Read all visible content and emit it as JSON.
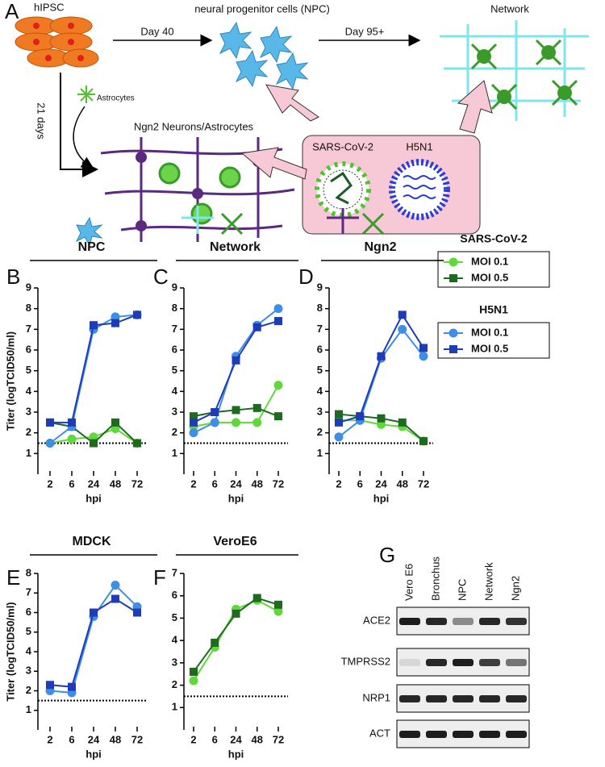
{
  "panel_a": {
    "label": "A",
    "hipsc": "hIPSC",
    "npc": "neural progenitor cells (NPC)",
    "network": "Network",
    "day40": "Day 40",
    "day95": "Day 95+",
    "days21": "21 days",
    "astrocytes": "Astrocytes",
    "ngn2": "Ngn2 Neurons/Astrocytes",
    "virus1": "SARS-CoV-2",
    "virus2": "H5N1"
  },
  "chart_data": [
    {
      "type": "line",
      "panel": "B",
      "title": "NPC",
      "ylabel": "Titer (logTCID50/ml)",
      "xlabel": "hpi",
      "categories": [
        "2",
        "6",
        "24",
        "48",
        "72"
      ],
      "ylim": [
        0,
        9
      ],
      "yticks": [
        1,
        2,
        3,
        4,
        5,
        6,
        7,
        8,
        9
      ],
      "threshold": 1.5,
      "series": [
        {
          "name": "MOI 0.1",
          "group": "SARS-CoV-2",
          "color": "#5fd83a",
          "marker": "circle",
          "values": [
            1.5,
            1.7,
            1.8,
            2.2,
            1.5
          ]
        },
        {
          "name": "MOI 0.5",
          "group": "SARS-CoV-2",
          "color": "#1e6a1e",
          "marker": "square",
          "values": [
            2.5,
            2.3,
            1.5,
            2.5,
            1.5
          ]
        },
        {
          "name": "MOI 0.1",
          "group": "H5N1",
          "color": "#3f8ee6",
          "marker": "circle",
          "values": [
            1.5,
            2.3,
            7.0,
            7.6,
            7.7
          ]
        },
        {
          "name": "MOI 0.5",
          "group": "H5N1",
          "color": "#1f3cb8",
          "marker": "square",
          "values": [
            2.5,
            2.5,
            7.2,
            7.3,
            7.7
          ]
        }
      ]
    },
    {
      "type": "line",
      "panel": "C",
      "title": "Network",
      "xlabel": "hpi",
      "categories": [
        "2",
        "6",
        "24",
        "48",
        "72"
      ],
      "ylim": [
        0,
        9
      ],
      "yticks": [
        1,
        2,
        3,
        4,
        5,
        6,
        7,
        8,
        9
      ],
      "threshold": 1.5,
      "series": [
        {
          "name": "MOI 0.1",
          "group": "SARS-CoV-2",
          "color": "#5fd83a",
          "marker": "circle",
          "values": [
            2.3,
            2.5,
            2.5,
            2.5,
            4.3
          ]
        },
        {
          "name": "MOI 0.5",
          "group": "SARS-CoV-2",
          "color": "#1e6a1e",
          "marker": "square",
          "values": [
            2.8,
            3.0,
            3.1,
            3.2,
            2.8
          ]
        },
        {
          "name": "MOI 0.1",
          "group": "H5N1",
          "color": "#3f8ee6",
          "marker": "circle",
          "values": [
            2.0,
            2.5,
            5.7,
            7.2,
            8.0
          ]
        },
        {
          "name": "MOI 0.5",
          "group": "H5N1",
          "color": "#1f3cb8",
          "marker": "square",
          "values": [
            2.5,
            3.0,
            5.5,
            7.1,
            7.4
          ]
        }
      ]
    },
    {
      "type": "line",
      "panel": "D",
      "title": "Ngn2",
      "xlabel": "hpi",
      "categories": [
        "2",
        "6",
        "24",
        "48",
        "72"
      ],
      "ylim": [
        0,
        9
      ],
      "yticks": [
        1,
        2,
        3,
        4,
        5,
        6,
        7,
        8,
        9
      ],
      "threshold": 1.5,
      "legend": "right",
      "series": [
        {
          "name": "MOI 0.1",
          "group": "SARS-CoV-2",
          "color": "#5fd83a",
          "marker": "circle",
          "values": [
            2.6,
            2.6,
            2.4,
            2.3,
            1.6
          ]
        },
        {
          "name": "MOI 0.5",
          "group": "SARS-CoV-2",
          "color": "#1e6a1e",
          "marker": "square",
          "values": [
            2.9,
            2.8,
            2.7,
            2.5,
            1.6
          ]
        },
        {
          "name": "MOI 0.1",
          "group": "H5N1",
          "color": "#3f8ee6",
          "marker": "circle",
          "values": [
            1.8,
            2.6,
            5.6,
            7.0,
            5.7
          ]
        },
        {
          "name": "MOI 0.5",
          "group": "H5N1",
          "color": "#1f3cb8",
          "marker": "square",
          "values": [
            2.5,
            2.8,
            5.7,
            7.7,
            6.1
          ]
        }
      ]
    },
    {
      "type": "line",
      "panel": "E",
      "title": "MDCK",
      "ylabel": "Titer (logTCID50/ml)",
      "xlabel": "hpi",
      "categories": [
        "2",
        "6",
        "24",
        "48",
        "72"
      ],
      "ylim": [
        0,
        8
      ],
      "yticks": [
        1,
        2,
        3,
        4,
        5,
        6,
        7,
        8
      ],
      "threshold": 1.5,
      "series": [
        {
          "name": "MOI 0.1",
          "group": "H5N1",
          "color": "#3f8ee6",
          "marker": "circle",
          "values": [
            2.0,
            1.9,
            5.8,
            7.4,
            6.3
          ]
        },
        {
          "name": "MOI 0.5",
          "group": "H5N1",
          "color": "#1f3cb8",
          "marker": "square",
          "values": [
            2.3,
            2.2,
            6.0,
            6.7,
            6.0
          ]
        }
      ]
    },
    {
      "type": "line",
      "panel": "F",
      "title": "VeroE6",
      "xlabel": "hpi",
      "categories": [
        "2",
        "6",
        "24",
        "48",
        "72"
      ],
      "ylim": [
        0,
        7
      ],
      "yticks": [
        1,
        2,
        3,
        4,
        5,
        6,
        7
      ],
      "threshold": 1.5,
      "series": [
        {
          "name": "MOI 0.1",
          "group": "SARS-CoV-2",
          "color": "#5fd83a",
          "marker": "circle",
          "values": [
            2.2,
            3.7,
            5.4,
            5.8,
            5.3
          ]
        },
        {
          "name": "MOI 0.5",
          "group": "SARS-CoV-2",
          "color": "#1e6a1e",
          "marker": "square",
          "values": [
            2.6,
            3.9,
            5.2,
            5.9,
            5.6
          ]
        }
      ]
    }
  ],
  "gel": {
    "label": "G",
    "lanes": [
      "Vero E6",
      "Bronchus",
      "NPC",
      "Network",
      "Ngn2"
    ],
    "genes": [
      "ACE2",
      "TMPRSS2",
      "NRP1",
      "ACT"
    ]
  }
}
